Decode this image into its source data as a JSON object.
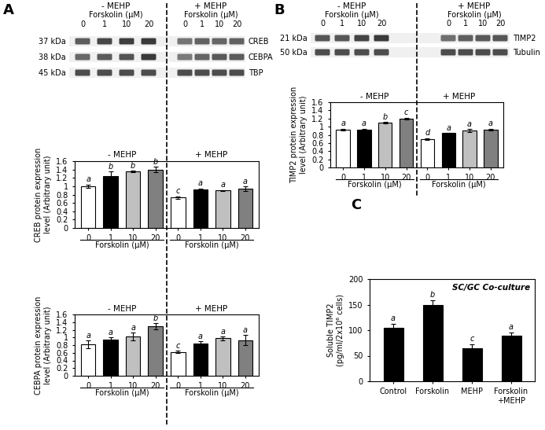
{
  "panels": [
    "A",
    "B",
    "C"
  ],
  "blots": [
    {
      "groups": [
        {
          "label": "- MEHP",
          "sublabel": "Forskolin (μM)",
          "lanes": [
            "0",
            "1",
            "10",
            "20"
          ]
        },
        {
          "label": "+ MEHP",
          "sublabel": "Forskolin (μM)",
          "lanes": [
            "0",
            "1",
            "10",
            "20"
          ]
        }
      ],
      "rows": [
        {
          "size": "37 kDa",
          "name": "CREB"
        },
        {
          "size": "38 kDa",
          "name": "CEBPA"
        },
        {
          "size": "45 kDa",
          "name": "TBP"
        }
      ]
    },
    {
      "groups": [
        {
          "label": "- MEHP",
          "sublabel": "Forskolin (μM)",
          "lanes": [
            "0",
            "1",
            "10",
            "20"
          ]
        },
        {
          "label": "+ MEHP",
          "sublabel": "Forskolin (μM)",
          "lanes": [
            "0",
            "1",
            "10",
            "20"
          ]
        }
      ],
      "rows": [
        {
          "size": "21 kDa",
          "name": "TIMP2"
        },
        {
          "size": "50 kDa",
          "name": "Tubulin"
        }
      ]
    }
  ],
  "chart_data": [
    {
      "type": "bar",
      "ylabel": "CREB protein expression\nlevel (Arbitrary unit)",
      "categories": [
        "0",
        "1",
        "10",
        "20",
        "0",
        "1",
        "10",
        "20"
      ],
      "groups": [
        {
          "label": "- MEHP",
          "xlabel": "Forskolin (μM)"
        },
        {
          "label": "+ MEHP",
          "xlabel": "Forskolin (μM)"
        }
      ],
      "values": [
        1.0,
        1.25,
        1.35,
        1.4,
        0.73,
        0.93,
        0.9,
        0.94
      ],
      "errors": [
        0.04,
        0.1,
        0.02,
        0.06,
        0.03,
        0.02,
        0.01,
        0.05
      ],
      "letters": [
        "a",
        "b",
        "b",
        "b",
        "c",
        "a",
        "a",
        "a"
      ],
      "colors": [
        "#ffffff",
        "#000000",
        "#c0c0c0",
        "#808080",
        "#ffffff",
        "#000000",
        "#c0c0c0",
        "#808080"
      ],
      "ylim": [
        0,
        1.6
      ],
      "yticks": [
        0,
        0.2,
        0.4,
        0.6,
        0.8,
        1,
        1.2,
        1.4,
        1.6
      ]
    },
    {
      "type": "bar",
      "ylabel": "CEBPA protein expression\nlevel (Arbitrary unit)",
      "categories": [
        "0",
        "1",
        "10",
        "20",
        "0",
        "1",
        "10",
        "20"
      ],
      "groups": [
        {
          "label": "- MEHP",
          "xlabel": "Forskolin (μM)"
        },
        {
          "label": "+ MEHP",
          "xlabel": "Forskolin (μM)"
        }
      ],
      "values": [
        0.82,
        0.95,
        1.02,
        1.3,
        0.62,
        0.84,
        0.98,
        0.93
      ],
      "errors": [
        0.1,
        0.05,
        0.1,
        0.08,
        0.03,
        0.06,
        0.05,
        0.13
      ],
      "letters": [
        "a",
        "a",
        "a",
        "b",
        "c",
        "a",
        "a",
        "a"
      ],
      "colors": [
        "#ffffff",
        "#000000",
        "#c0c0c0",
        "#808080",
        "#ffffff",
        "#000000",
        "#c0c0c0",
        "#808080"
      ],
      "ylim": [
        0,
        1.6
      ],
      "yticks": [
        0,
        0.2,
        0.4,
        0.6,
        0.8,
        1,
        1.2,
        1.4,
        1.6
      ]
    },
    {
      "type": "bar",
      "ylabel": "TIMP2 protein expression\nlevel (Arbitrary unit)",
      "categories": [
        "0",
        "1",
        "10",
        "20",
        "0",
        "1",
        "10",
        "20"
      ],
      "groups": [
        {
          "label": "- MEHP",
          "xlabel": "Forskolin (μM)"
        },
        {
          "label": "+ MEHP",
          "xlabel": "Forskolin (μM)"
        }
      ],
      "values": [
        0.93,
        0.92,
        1.1,
        1.2,
        0.7,
        0.84,
        0.9,
        0.93
      ],
      "errors": [
        0.02,
        0.03,
        0.02,
        0.02,
        0.02,
        0.01,
        0.04,
        0.02
      ],
      "letters": [
        "a",
        "a",
        "b",
        "c",
        "d",
        "a",
        "a",
        "a"
      ],
      "colors": [
        "#ffffff",
        "#000000",
        "#c0c0c0",
        "#808080",
        "#ffffff",
        "#000000",
        "#c0c0c0",
        "#808080"
      ],
      "ylim": [
        0,
        1.6
      ],
      "yticks": [
        0,
        0.2,
        0.4,
        0.6,
        0.8,
        1,
        1.2,
        1.4,
        1.6
      ]
    },
    {
      "type": "bar",
      "title": "SC/GC Co-culture",
      "ylabel": "Soluble TIMP2\n(pg/ml/2x10⁶ cells)",
      "categories": [
        "Control",
        "Forskolin",
        "MEHP",
        "Forskolin\n+MEHP"
      ],
      "values": [
        105,
        150,
        65,
        90
      ],
      "errors": [
        7,
        9,
        8,
        5
      ],
      "letters": [
        "a",
        "b",
        "c",
        "a"
      ],
      "color": "#000000",
      "ylim": [
        0,
        200
      ],
      "yticks": [
        0,
        50,
        100,
        150,
        200
      ]
    }
  ]
}
